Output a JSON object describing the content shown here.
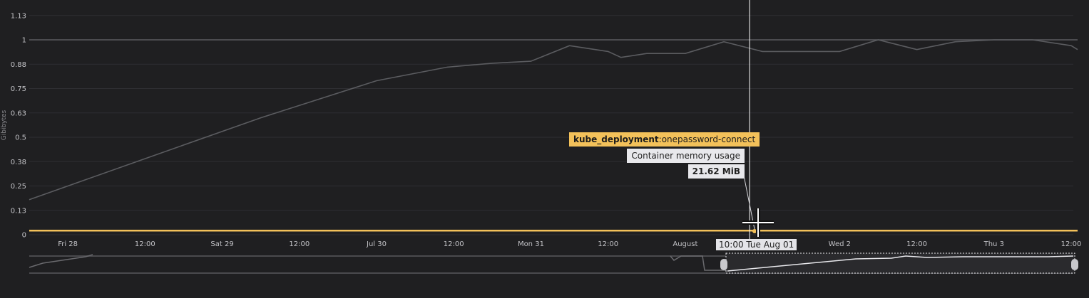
{
  "chart_data": {
    "type": "line",
    "ylabel": "Gibibytes",
    "ylim": [
      0,
      1.2
    ],
    "yticks": [
      "1.13",
      "1",
      "0.88",
      "0.75",
      "0.63",
      "0.5",
      "0.38",
      "0.25",
      "0.13",
      "0"
    ],
    "ytick_values": [
      1.125,
      1.0,
      0.875,
      0.75,
      0.625,
      0.5,
      0.375,
      0.25,
      0.125,
      0
    ],
    "xrange": [
      "2023-07-27T18:00",
      "2023-08-03T12:00"
    ],
    "xticks": [
      {
        "label": "Fri 28",
        "t": "2023-07-28T00:00"
      },
      {
        "label": "12:00",
        "t": "2023-07-28T12:00"
      },
      {
        "label": "Sat 29",
        "t": "2023-07-29T00:00"
      },
      {
        "label": "12:00",
        "t": "2023-07-29T12:00"
      },
      {
        "label": "Jul 30",
        "t": "2023-07-30T00:00"
      },
      {
        "label": "12:00",
        "t": "2023-07-30T12:00"
      },
      {
        "label": "Mon 31",
        "t": "2023-07-31T00:00"
      },
      {
        "label": "12:00",
        "t": "2023-07-31T12:00"
      },
      {
        "label": "August",
        "t": "2023-08-01T00:00"
      },
      {
        "label": "Wed 2",
        "t": "2023-08-02T00:00"
      },
      {
        "label": "12:00",
        "t": "2023-08-02T12:00"
      },
      {
        "label": "Thu 3",
        "t": "2023-08-03T00:00"
      },
      {
        "label": "12:00",
        "t": "2023-08-03T12:00"
      }
    ],
    "series": [
      {
        "color": "#5b5c60",
        "x": [
          "2023-07-27T18:00",
          "2023-07-28T12:00",
          "2023-07-29T06:00",
          "2023-07-30T00:00",
          "2023-07-30T11:00",
          "2023-07-30T18:00",
          "2023-07-31T00:00",
          "2023-07-31T06:00",
          "2023-07-31T12:00",
          "2023-07-31T14:00",
          "2023-07-31T18:00",
          "2023-08-01T00:00",
          "2023-08-01T06:00",
          "2023-08-01T12:00",
          "2023-08-01T18:00",
          "2023-08-02T00:00",
          "2023-08-02T06:00",
          "2023-08-02T12:00",
          "2023-08-02T18:00",
          "2023-08-03T00:00",
          "2023-08-03T06:00",
          "2023-08-03T12:00",
          "2023-08-03T13:00"
        ],
        "values": [
          0.18,
          0.39,
          0.6,
          0.79,
          0.86,
          0.88,
          0.89,
          0.97,
          0.94,
          0.91,
          0.93,
          0.93,
          0.99,
          0.94,
          0.94,
          0.94,
          1.0,
          0.95,
          0.99,
          1.0,
          1.0,
          0.97,
          0.95
        ]
      },
      {
        "color": "#5b5c60",
        "x": [
          "2023-07-27T18:00",
          "2023-08-03T13:00"
        ],
        "values": [
          1.0,
          1.0
        ]
      },
      {
        "name": "onepassword-connect",
        "color": "#f3c15a",
        "x": [
          "2023-07-27T18:00",
          "2023-08-03T13:00"
        ],
        "values": [
          0.0211,
          0.0211
        ]
      }
    ],
    "cursor_time": "2023-08-01T10:00",
    "grid": true,
    "legend": "none"
  },
  "tooltip": {
    "series_key": "kube_deployment",
    "series_value": ":onepassword-connect",
    "metric": "Container memory usage",
    "value": "21.62 MiB"
  },
  "cursor_label": "10:00 Tue Aug 01"
}
